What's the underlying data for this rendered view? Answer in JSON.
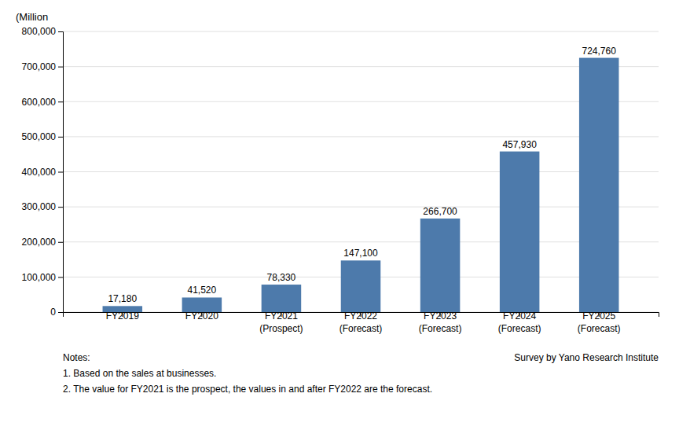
{
  "chart_data": {
    "type": "bar",
    "categories": [
      "FY2019",
      "FY2020",
      "FY2021\n(Prospect)",
      "FY2022\n(Forecast)",
      "FY2023\n(Forecast)",
      "FY2024\n(Forecast)",
      "FY2025\n(Forecast)"
    ],
    "values": [
      17180,
      41520,
      78330,
      147100,
      266700,
      457930,
      724760
    ],
    "value_labels": [
      "17,180",
      "41,520",
      "78,330",
      "147,100",
      "266,700",
      "457,930",
      "724,760"
    ],
    "data_labels": true,
    "color": "#4d7aab",
    "ylim": [
      0,
      800000
    ],
    "yticks": [
      0,
      {
        "value": 100000,
        "label": "100,000"
      },
      {
        "value": 200000,
        "label": "200,000"
      },
      {
        "value": 300000,
        "label": "300,000"
      },
      {
        "value": 400000,
        "label": "400,000"
      },
      {
        "value": 500000,
        "label": "500,000"
      },
      {
        "value": 600000,
        "label": "600,000"
      },
      {
        "value": 700000,
        "label": "700,000"
      },
      {
        "value": 800000,
        "label": "800,000"
      }
    ],
    "ylabel": "(Million",
    "grid": true,
    "annotations": [
      "Notes:",
      "Survey by Yano Research Institute",
      "1. Based on the sales at businesses.",
      "2. The value for FY2021 is the prospect, the values in and after FY2022 are the forecast."
    ]
  }
}
